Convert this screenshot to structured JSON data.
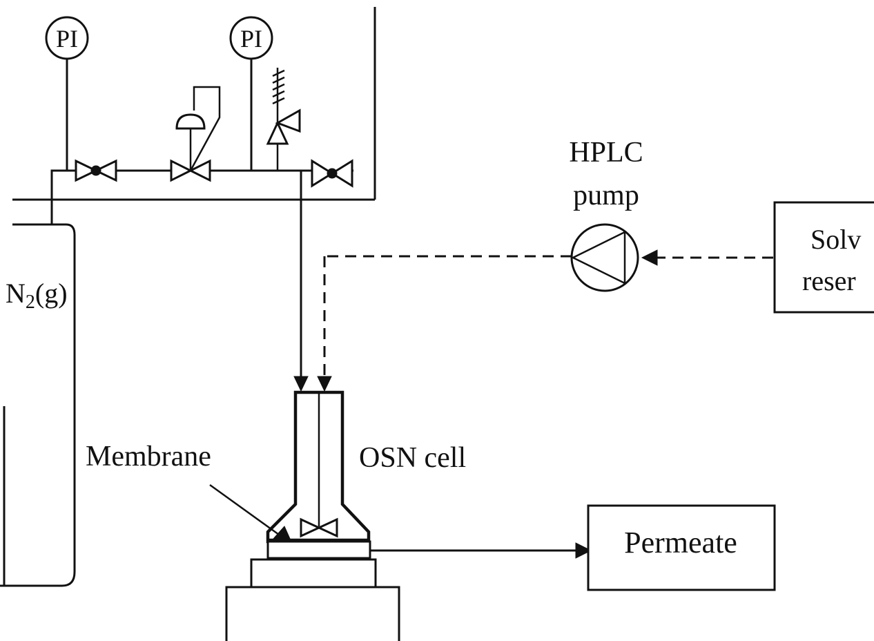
{
  "labels": {
    "pi_left": "PI",
    "pi_right": "PI",
    "gas": "N2(g)",
    "pump_line1": "HPLC",
    "pump_line2": "pump",
    "reservoir_line1": "Solv",
    "reservoir_line2": "reser",
    "membrane": "Membrane",
    "cell": "OSN cell",
    "permeate": "Permeate"
  },
  "colors": {
    "stroke": "#111111",
    "background": "#ffffff"
  }
}
